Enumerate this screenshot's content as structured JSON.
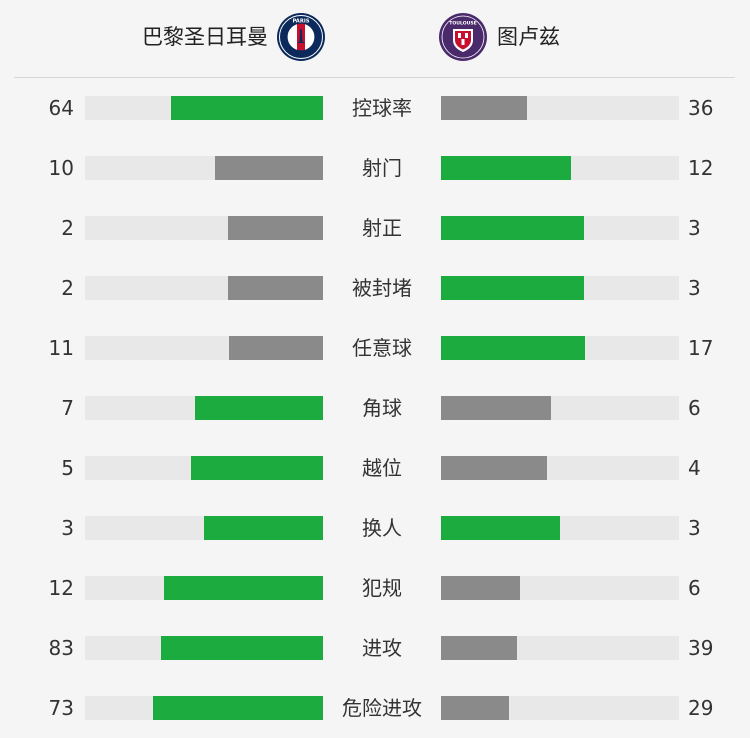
{
  "colors": {
    "leader": "#1bab3e",
    "trailer": "#8a8a8a",
    "track": "#e8e8e8"
  },
  "header": {
    "home": {
      "name": "巴黎圣日耳曼",
      "logo_text": "PARIS",
      "logo_icon": "psg-crest-icon"
    },
    "away": {
      "name": "图卢兹",
      "logo_text": "TOULOUSE",
      "logo_icon": "toulouse-crest-icon"
    }
  },
  "stats": [
    {
      "label": "控球率",
      "home": "64",
      "away": "36",
      "home_fill": 0.64,
      "away_fill": 0.36,
      "leader": "home"
    },
    {
      "label": "射门",
      "home": "10",
      "away": "12",
      "home_fill": 0.455,
      "away_fill": 0.545,
      "leader": "away"
    },
    {
      "label": "射正",
      "home": "2",
      "away": "3",
      "home_fill": 0.4,
      "away_fill": 0.6,
      "leader": "away"
    },
    {
      "label": "被封堵",
      "home": "2",
      "away": "3",
      "home_fill": 0.4,
      "away_fill": 0.6,
      "leader": "away"
    },
    {
      "label": "任意球",
      "home": "11",
      "away": "17",
      "home_fill": 0.393,
      "away_fill": 0.607,
      "leader": "away"
    },
    {
      "label": "角球",
      "home": "7",
      "away": "6",
      "home_fill": 0.538,
      "away_fill": 0.462,
      "leader": "home"
    },
    {
      "label": "越位",
      "home": "5",
      "away": "4",
      "home_fill": 0.556,
      "away_fill": 0.444,
      "leader": "home"
    },
    {
      "label": "换人",
      "home": "3",
      "away": "3",
      "home_fill": 0.5,
      "away_fill": 0.5,
      "leader": "both"
    },
    {
      "label": "犯规",
      "home": "12",
      "away": "6",
      "home_fill": 0.667,
      "away_fill": 0.333,
      "leader": "home"
    },
    {
      "label": "进攻",
      "home": "83",
      "away": "39",
      "home_fill": 0.68,
      "away_fill": 0.32,
      "leader": "home"
    },
    {
      "label": "危险进攻",
      "home": "73",
      "away": "29",
      "home_fill": 0.716,
      "away_fill": 0.284,
      "leader": "home"
    }
  ]
}
